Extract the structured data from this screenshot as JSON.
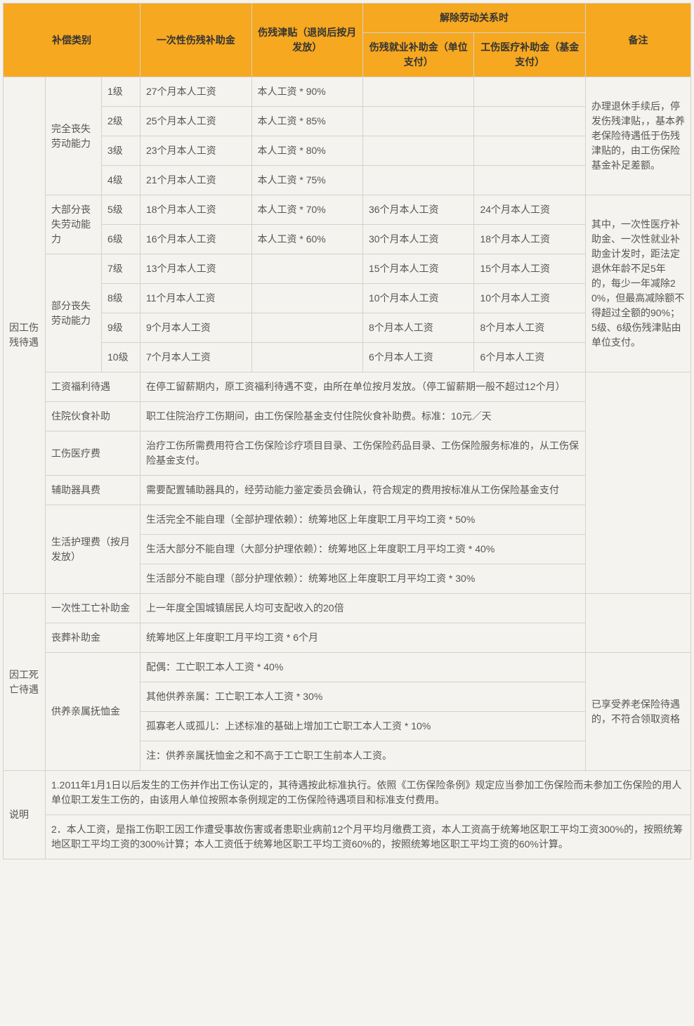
{
  "header": {
    "category": "补偿类别",
    "lump_sum": "一次性伤残补助金",
    "allowance": "伤残津贴（退岗后按月发放）",
    "termination": "解除劳动关系时",
    "emp_subsidy": "伤残就业补助金（单位支付）",
    "med_subsidy": "工伤医疗补助金（基金支付）",
    "remark": "备注"
  },
  "injury": {
    "title": "因工伤残待遇",
    "full": "完全丧失劳动能力",
    "most": "大部分丧失劳动能力",
    "partial": "部分丧失劳动能力",
    "l1": {
      "lv": "1级",
      "a": "27个月本人工资",
      "b": "本人工资 * 90%"
    },
    "l2": {
      "lv": "2级",
      "a": "25个月本人工资",
      "b": "本人工资 * 85%"
    },
    "l3": {
      "lv": "3级",
      "a": "23个月本人工资",
      "b": "本人工资 * 80%"
    },
    "l4": {
      "lv": "4级",
      "a": "21个月本人工资",
      "b": "本人工资 * 75%"
    },
    "l5": {
      "lv": "5级",
      "a": "18个月本人工资",
      "b": "本人工资 * 70%",
      "c": "36个月本人工资",
      "d": "24个月本人工资"
    },
    "l6": {
      "lv": "6级",
      "a": "16个月本人工资",
      "b": "本人工资 * 60%",
      "c": "30个月本人工资",
      "d": "18个月本人工资"
    },
    "l7": {
      "lv": "7级",
      "a": "13个月本人工资",
      "c": "15个月本人工资",
      "d": "15个月本人工资"
    },
    "l8": {
      "lv": "8级",
      "a": "11个月本人工资",
      "c": "10个月本人工资",
      "d": "10个月本人工资"
    },
    "l9": {
      "lv": "9级",
      "a": "9个月本人工资",
      "c": "8个月本人工资",
      "d": "8个月本人工资"
    },
    "l10": {
      "lv": "10级",
      "a": "7个月本人工资",
      "c": "6个月本人工资",
      "d": "6个月本人工资"
    },
    "remark1": "办理退休手续后，停发伤残津贴，，基本养老保险待遇低于伤残津贴的，由工伤保险基金补足差额。",
    "remark2": "其中，一次性医疗补助金、一次性就业补助金计发时，距法定退休年龄不足5年的，每少一年减除20%，但最高减除额不得超过全额的90%；5级、6级伤残津贴由单位支付。",
    "wage": {
      "t": "工资福利待遇",
      "v": "在停工留薪期内，原工资福利待遇不变，由所在单位按月发放。（停工留薪期一般不超过12个月）"
    },
    "meal": {
      "t": "住院伙食补助",
      "v": "职工住院治疗工伤期间，由工伤保险基金支付住院伙食补助费。标准：10元／天"
    },
    "medfee": {
      "t": "工伤医疗费",
      "v": "治疗工伤所需费用符合工伤保险诊疗项目目录、工伤保险药品目录、工伤保险服务标准的，从工伤保险基金支付。"
    },
    "aid": {
      "t": "辅助器具费",
      "v": "需要配置辅助器具的，经劳动能力鉴定委员会确认，符合规定的费用按标准从工伤保险基金支付"
    },
    "care": {
      "t": "生活护理费（按月发放）",
      "a": "生活完全不能自理（全部护理依赖）：统筹地区上年度职工月平均工资 * 50%",
      "b": "生活大部分不能自理（大部分护理依赖）：统筹地区上年度职工月平均工资 * 40%",
      "c": "生活部分不能自理（部分护理依赖）：统筹地区上年度职工月平均工资 * 30%"
    }
  },
  "death": {
    "title": "因工死亡待遇",
    "once": {
      "t": "一次性工亡补助金",
      "v": "上一年度全国城镇居民人均可支配收入的20倍"
    },
    "funeral": {
      "t": "丧葬补助金",
      "v": "统筹地区上年度职工月平均工资 * 6个月"
    },
    "dep": {
      "t": "供养亲属抚恤金",
      "a": "配偶：工亡职工本人工资 * 40%",
      "b": "其他供养亲属：工亡职工本人工资 * 30%",
      "c": "孤寡老人或孤儿：上述标准的基础上增加工亡职工本人工资 * 10%",
      "d": "注：供养亲属抚恤金之和不高于工亡职工生前本人工资。"
    },
    "remark": "已享受养老保险待遇的，不符合领取资格"
  },
  "notes": {
    "t": "说明",
    "n1": "1.2011年1月1日以后发生的工伤并作出工伤认定的，其待遇按此标准执行。依照《工伤保险条例》规定应当参加工伤保险而未参加工伤保险的用人单位职工发生工伤的，由该用人单位按照本条例规定的工伤保险待遇项目和标准支付费用。",
    "n2": "2．本人工资，是指工伤职工因工作遭受事故伤害或者患职业病前12个月平均月缴费工资，本人工资高于统筹地区职工平均工资300%的，按照统筹地区职工平均工资的300%计算；本人工资低于统筹地区职工平均工资60%的，按照统筹地区职工平均工资的60%计算。"
  },
  "style": {
    "header_bg": "#f6a820",
    "border_color": "#d6d2c9",
    "text_color": "#555555",
    "bg_color": "#f5f3ef",
    "font_size": 14
  }
}
